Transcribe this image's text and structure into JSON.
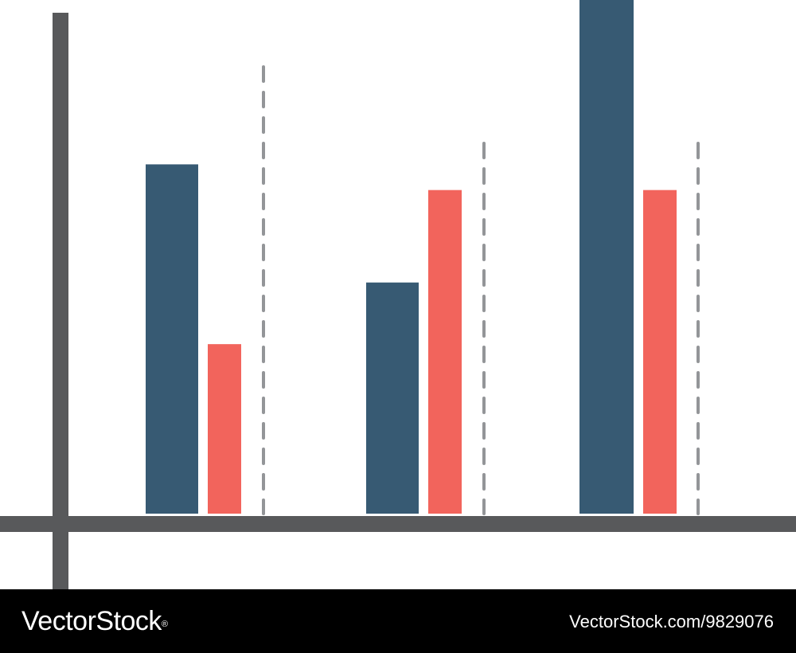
{
  "chart_data": {
    "type": "bar",
    "categories": [
      "",
      "",
      ""
    ],
    "series": [
      {
        "values": [
          68,
          45,
          100
        ]
      },
      {
        "values": [
          33,
          63,
          63
        ]
      }
    ],
    "ylim": [
      0,
      100
    ],
    "grid": false,
    "legend": "none",
    "separators": "dashed-vertical-after-each-group",
    "colors": {
      "series_1": "#375a73",
      "series_2": "#f2645c",
      "axis": "#58595b",
      "separator": "#939598"
    }
  },
  "watermark": {
    "brand": "VectorStock",
    "registered_mark": "®",
    "image_id": "VectorStock.com/9829076"
  }
}
